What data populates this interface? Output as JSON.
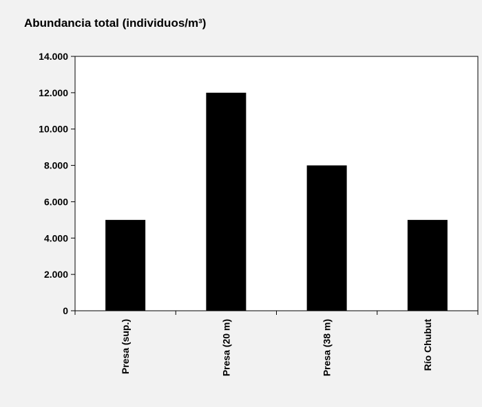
{
  "chart_data": {
    "type": "bar",
    "title": "Abundancia total (individuos/m³)",
    "categories": [
      "Presa (sup.)",
      "Presa (20 m)",
      "Presa (38 m)",
      "Río Chubut"
    ],
    "values": [
      5000,
      12000,
      8000,
      5000
    ],
    "y_tick_labels": [
      "0",
      "2.000",
      "4.000",
      "6.000",
      "8.000",
      "10.000",
      "12.000",
      "14.000"
    ],
    "ylim": [
      0,
      14000
    ],
    "xlabel": "",
    "ylabel": "",
    "grid": false,
    "bar_color": "#000000",
    "background_color": "#f2f2f2",
    "plot_background_color": "#ffffff"
  }
}
